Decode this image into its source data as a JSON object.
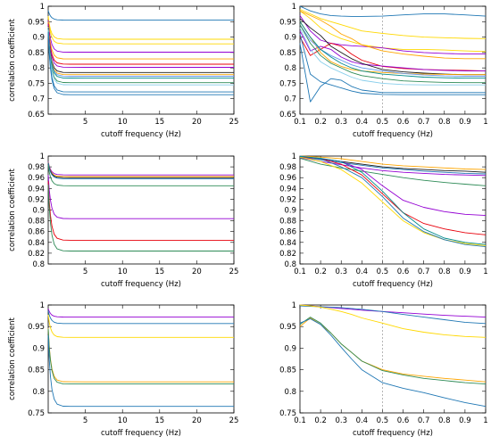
{
  "chart_data": [
    {
      "type": "line",
      "position": "row1-left",
      "xlabel": "cutoff frequency (Hz)",
      "ylabel": "correlation coefficient",
      "xlim": [
        0,
        25
      ],
      "ylim": [
        0.65,
        1.0
      ],
      "xticks": [
        5,
        10,
        15,
        20,
        25
      ],
      "yticks": [
        0.65,
        0.7,
        0.75,
        0.8,
        0.85,
        0.9,
        0.95,
        1
      ],
      "ytick_labels": [
        "0.65",
        "0.7",
        "0.75",
        "0.8",
        "0.85",
        "0.9",
        "0.95",
        "1"
      ],
      "legend": "none",
      "series": [
        {
          "color": "#1f77b4",
          "values": [
            0.955
          ]
        },
        {
          "color": "#ffd800",
          "values": [
            0.893
          ]
        },
        {
          "color": "#ffd800",
          "values": [
            0.878
          ]
        },
        {
          "color": "#9400d3",
          "values": [
            0.851
          ]
        },
        {
          "color": "#ffa500",
          "values": [
            0.829
          ]
        },
        {
          "color": "#e8000b",
          "values": [
            0.812
          ]
        },
        {
          "color": "#9400d3",
          "values": [
            0.802
          ]
        },
        {
          "color": "#1a1a1a",
          "values": [
            0.785
          ]
        },
        {
          "color": "#ffa500",
          "values": [
            0.778
          ]
        },
        {
          "color": "#6495ed",
          "values": [
            0.773
          ]
        },
        {
          "color": "#008b8b",
          "values": [
            0.767
          ]
        },
        {
          "color": "#2e8b57",
          "values": [
            0.752
          ]
        },
        {
          "color": "#87ceeb",
          "values": [
            0.745
          ]
        },
        {
          "color": "#1f77b4",
          "values": [
            0.722
          ]
        },
        {
          "color": "#1f77b4",
          "values": [
            0.713
          ]
        }
      ]
    },
    {
      "type": "line",
      "position": "row1-right",
      "xlabel": "cutoff frequency (Hz)",
      "ylabel": "",
      "xlim": [
        0.1,
        1.0
      ],
      "ylim": [
        0.65,
        1.0
      ],
      "xticks": [
        0.1,
        0.2,
        0.3,
        0.4,
        0.5,
        0.6,
        0.7,
        0.8,
        0.9,
        1
      ],
      "xtick_labels": [
        "0.1",
        "0.2",
        "0.3",
        "0.4",
        "0.5",
        "0.6",
        "0.7",
        "0.8",
        "0.9",
        "1"
      ],
      "yticks": [
        0.65,
        0.7,
        0.75,
        0.8,
        0.85,
        0.9,
        0.95,
        1
      ],
      "ytick_labels": [
        "0.65",
        "0.7",
        "0.75",
        "0.8",
        "0.85",
        "0.9",
        "0.95",
        "1"
      ],
      "vline_x": 0.5,
      "legend": "none",
      "x": [
        0.1,
        0.15,
        0.2,
        0.25,
        0.3,
        0.35,
        0.4,
        0.5,
        0.6,
        0.7,
        0.8,
        0.9,
        1.0
      ],
      "series": [
        {
          "color": "#1f77b4",
          "values": [
            1.0,
            0.985,
            0.975,
            0.97,
            0.968,
            0.967,
            0.967,
            0.968,
            0.972,
            0.975,
            0.975,
            0.972,
            0.968
          ]
        },
        {
          "color": "#ffd800",
          "values": [
            0.99,
            0.975,
            0.96,
            0.95,
            0.94,
            0.93,
            0.92,
            0.912,
            0.905,
            0.9,
            0.898,
            0.896,
            0.895
          ]
        },
        {
          "color": "#ffd800",
          "values": [
            0.985,
            0.96,
            0.93,
            0.91,
            0.895,
            0.885,
            0.875,
            0.865,
            0.86,
            0.86,
            0.858,
            0.855,
            0.853
          ]
        },
        {
          "color": "#9400d3",
          "values": [
            0.97,
            0.92,
            0.89,
            0.88,
            0.875,
            0.872,
            0.87,
            0.865,
            0.855,
            0.85,
            0.847,
            0.845,
            0.845
          ]
        },
        {
          "color": "#ffa500",
          "values": [
            0.985,
            0.97,
            0.955,
            0.935,
            0.91,
            0.895,
            0.875,
            0.855,
            0.845,
            0.838,
            0.832,
            0.83,
            0.83
          ]
        },
        {
          "color": "#e8000b",
          "values": [
            0.9,
            0.84,
            0.86,
            0.88,
            0.87,
            0.845,
            0.825,
            0.805,
            0.798,
            0.795,
            0.793,
            0.792,
            0.79
          ]
        },
        {
          "color": "#9400d3",
          "values": [
            0.92,
            0.855,
            0.87,
            0.86,
            0.835,
            0.82,
            0.812,
            0.806,
            0.8,
            0.795,
            0.792,
            0.79,
            0.79
          ]
        },
        {
          "color": "#1a1a1a",
          "values": [
            0.96,
            0.93,
            0.905,
            0.87,
            0.85,
            0.83,
            0.815,
            0.795,
            0.787,
            0.783,
            0.78,
            0.778,
            0.778
          ]
        },
        {
          "color": "#ffa500",
          "values": [
            0.95,
            0.9,
            0.85,
            0.82,
            0.805,
            0.795,
            0.79,
            0.785,
            0.782,
            0.78,
            0.779,
            0.778,
            0.778
          ]
        },
        {
          "color": "#6495ed",
          "values": [
            0.94,
            0.89,
            0.86,
            0.84,
            0.825,
            0.81,
            0.8,
            0.79,
            0.782,
            0.777,
            0.774,
            0.773,
            0.773
          ]
        },
        {
          "color": "#008b8b",
          "values": [
            0.95,
            0.9,
            0.86,
            0.835,
            0.815,
            0.8,
            0.79,
            0.78,
            0.775,
            0.77,
            0.768,
            0.767,
            0.767
          ]
        },
        {
          "color": "#2e8b57",
          "values": [
            0.94,
            0.88,
            0.84,
            0.815,
            0.8,
            0.785,
            0.775,
            0.765,
            0.758,
            0.755,
            0.753,
            0.752,
            0.752
          ]
        },
        {
          "color": "#87ceeb",
          "values": [
            0.93,
            0.86,
            0.82,
            0.8,
            0.785,
            0.77,
            0.76,
            0.75,
            0.746,
            0.745,
            0.745,
            0.745,
            0.745
          ]
        },
        {
          "color": "#1f77b4",
          "values": [
            0.88,
            0.69,
            0.74,
            0.765,
            0.76,
            0.74,
            0.728,
            0.72,
            0.72,
            0.72,
            0.72,
            0.72,
            0.72
          ]
        },
        {
          "color": "#1f77b4",
          "values": [
            0.91,
            0.78,
            0.755,
            0.745,
            0.735,
            0.725,
            0.718,
            0.714,
            0.713,
            0.713,
            0.713,
            0.713,
            0.713
          ]
        }
      ]
    },
    {
      "type": "line",
      "position": "row2-left",
      "xlabel": "cutoff frequency (Hz)",
      "ylabel": "correlation coefficient",
      "xlim": [
        0,
        25
      ],
      "ylim": [
        0.8,
        1.0
      ],
      "xticks": [
        5,
        10,
        15,
        20,
        25
      ],
      "yticks": [
        0.8,
        0.82,
        0.84,
        0.86,
        0.88,
        0.9,
        0.92,
        0.94,
        0.96,
        0.98,
        1
      ],
      "ytick_labels": [
        "0.8",
        "0.82",
        "0.84",
        "0.86",
        "0.88",
        "0.9",
        "0.92",
        "0.94",
        "0.96",
        "0.98",
        "1"
      ],
      "legend": "none",
      "series": [
        {
          "color": "#9400d3",
          "values": [
            0.965
          ]
        },
        {
          "color": "#ffa500",
          "values": [
            0.962
          ]
        },
        {
          "color": "#1a1a1a",
          "values": [
            0.96
          ]
        },
        {
          "color": "#1f77b4",
          "values": [
            0.958
          ]
        },
        {
          "color": "#2e8b57",
          "values": [
            0.945
          ]
        },
        {
          "color": "#9400d3",
          "values": [
            0.884
          ]
        },
        {
          "color": "#e8000b",
          "values": [
            0.844
          ]
        },
        {
          "color": "#2e8b57",
          "values": [
            0.824
          ]
        }
      ]
    },
    {
      "type": "line",
      "position": "row2-right",
      "xlabel": "cutoff frequency (Hz)",
      "ylabel": "",
      "xlim": [
        0.1,
        1.0
      ],
      "ylim": [
        0.8,
        1.0
      ],
      "xticks": [
        0.1,
        0.2,
        0.3,
        0.4,
        0.5,
        0.6,
        0.7,
        0.8,
        0.9,
        1
      ],
      "xtick_labels": [
        "0.1",
        "0.2",
        "0.3",
        "0.4",
        "0.5",
        "0.6",
        "0.7",
        "0.8",
        "0.9",
        "1"
      ],
      "yticks": [
        0.8,
        0.82,
        0.84,
        0.86,
        0.88,
        0.9,
        0.92,
        0.94,
        0.96,
        0.98,
        1
      ],
      "ytick_labels": [
        "0.8",
        "0.82",
        "0.84",
        "0.86",
        "0.88",
        "0.9",
        "0.92",
        "0.94",
        "0.96",
        "0.98",
        "1"
      ],
      "vline_x": 0.5,
      "legend": "none",
      "x": [
        0.1,
        0.2,
        0.3,
        0.4,
        0.5,
        0.6,
        0.7,
        0.8,
        0.9,
        1.0
      ],
      "series": [
        {
          "color": "#ffa500",
          "values": [
            1.0,
            0.998,
            0.995,
            0.99,
            0.985,
            0.982,
            0.98,
            0.978,
            0.976,
            0.975
          ]
        },
        {
          "color": "#1a1a1a",
          "values": [
            0.999,
            0.995,
            0.99,
            0.985,
            0.98,
            0.977,
            0.975,
            0.973,
            0.972,
            0.97
          ]
        },
        {
          "color": "#1f77b4",
          "values": [
            0.998,
            0.993,
            0.988,
            0.983,
            0.978,
            0.975,
            0.972,
            0.97,
            0.968,
            0.967
          ]
        },
        {
          "color": "#9400d3",
          "values": [
            0.997,
            0.99,
            0.984,
            0.978,
            0.973,
            0.97,
            0.968,
            0.966,
            0.965,
            0.964
          ]
        },
        {
          "color": "#2e8b57",
          "values": [
            0.996,
            0.985,
            0.978,
            0.972,
            0.966,
            0.96,
            0.955,
            0.951,
            0.948,
            0.945
          ]
        },
        {
          "color": "#9400d3",
          "values": [
            0.998,
            0.995,
            0.99,
            0.975,
            0.945,
            0.918,
            0.905,
            0.897,
            0.892,
            0.89
          ]
        },
        {
          "color": "#e8000b",
          "values": [
            0.999,
            0.995,
            0.985,
            0.965,
            0.93,
            0.895,
            0.875,
            0.865,
            0.858,
            0.854
          ]
        },
        {
          "color": "#ffd800",
          "values": [
            0.998,
            0.99,
            0.975,
            0.95,
            0.915,
            0.88,
            0.858,
            0.845,
            0.838,
            0.834
          ]
        },
        {
          "color": "#1f77b4",
          "values": [
            1.0,
            0.995,
            0.98,
            0.96,
            0.925,
            0.885,
            0.86,
            0.845,
            0.836,
            0.832
          ]
        },
        {
          "color": "#008b8b",
          "values": [
            0.999,
            0.996,
            0.99,
            0.97,
            0.935,
            0.895,
            0.865,
            0.848,
            0.84,
            0.836
          ]
        }
      ]
    },
    {
      "type": "line",
      "position": "row3-left",
      "xlabel": "cutoff frequency (Hz)",
      "ylabel": "correlation coefficient",
      "xlim": [
        0,
        25
      ],
      "ylim": [
        0.75,
        1.0
      ],
      "xticks": [
        5,
        10,
        15,
        20,
        25
      ],
      "yticks": [
        0.75,
        0.8,
        0.85,
        0.9,
        0.95,
        1
      ],
      "ytick_labels": [
        "0.75",
        "0.8",
        "0.85",
        "0.9",
        "0.95",
        "1"
      ],
      "legend": "none",
      "series": [
        {
          "color": "#9400d3",
          "values": [
            0.972
          ]
        },
        {
          "color": "#1f77b4",
          "values": [
            0.957
          ]
        },
        {
          "color": "#ffd800",
          "values": [
            0.925
          ]
        },
        {
          "color": "#ffa500",
          "values": [
            0.822
          ]
        },
        {
          "color": "#2e8b57",
          "values": [
            0.817
          ]
        },
        {
          "color": "#1f77b4",
          "values": [
            0.765
          ]
        }
      ]
    },
    {
      "type": "line",
      "position": "row3-right",
      "xlabel": "cutoff frequency (Hz)",
      "ylabel": "",
      "xlim": [
        0.1,
        1.0
      ],
      "ylim": [
        0.75,
        1.0
      ],
      "xticks": [
        0.1,
        0.2,
        0.3,
        0.4,
        0.5,
        0.6,
        0.7,
        0.8,
        0.9,
        1
      ],
      "xtick_labels": [
        "0.1",
        "0.2",
        "0.3",
        "0.4",
        "0.5",
        "0.6",
        "0.7",
        "0.8",
        "0.9",
        "1"
      ],
      "yticks": [
        0.75,
        0.8,
        0.85,
        0.9,
        0.95,
        1
      ],
      "ytick_labels": [
        "0.75",
        "0.8",
        "0.85",
        "0.9",
        "0.95",
        "1"
      ],
      "vline_x": 0.5,
      "legend": "none",
      "x": [
        0.1,
        0.15,
        0.2,
        0.25,
        0.3,
        0.35,
        0.4,
        0.5,
        0.6,
        0.7,
        0.8,
        0.9,
        1.0
      ],
      "series": [
        {
          "color": "#9400d3",
          "values": [
            1.0,
            0.998,
            0.996,
            0.994,
            0.992,
            0.99,
            0.988,
            0.985,
            0.982,
            0.979,
            0.976,
            0.974,
            0.972
          ]
        },
        {
          "color": "#1f77b4",
          "values": [
            0.998,
            0.997,
            0.996,
            0.995,
            0.994,
            0.992,
            0.99,
            0.985,
            0.978,
            0.972,
            0.966,
            0.96,
            0.957
          ]
        },
        {
          "color": "#ffd800",
          "values": [
            1.0,
            0.998,
            0.995,
            0.99,
            0.985,
            0.978,
            0.97,
            0.958,
            0.945,
            0.937,
            0.931,
            0.927,
            0.925
          ]
        },
        {
          "color": "#ffa500",
          "values": [
            0.95,
            0.97,
            0.955,
            0.935,
            0.91,
            0.89,
            0.87,
            0.85,
            0.84,
            0.835,
            0.83,
            0.826,
            0.822
          ]
        },
        {
          "color": "#2e8b57",
          "values": [
            0.955,
            0.972,
            0.958,
            0.935,
            0.91,
            0.89,
            0.87,
            0.848,
            0.838,
            0.83,
            0.825,
            0.82,
            0.817
          ]
        },
        {
          "color": "#1f77b4",
          "values": [
            0.958,
            0.968,
            0.955,
            0.93,
            0.902,
            0.875,
            0.85,
            0.82,
            0.807,
            0.797,
            0.785,
            0.774,
            0.765
          ]
        }
      ]
    }
  ]
}
